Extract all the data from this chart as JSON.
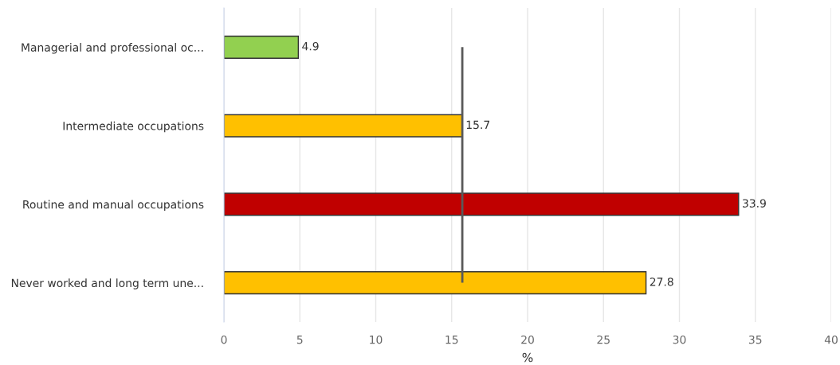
{
  "chart_data": {
    "type": "bar",
    "orientation": "horizontal",
    "xlabel": "%",
    "categories": [
      "Managerial and professional oc...",
      "Intermediate occupations",
      "Routine and manual occupations",
      "Never worked and long term une..."
    ],
    "values": [
      4.9,
      15.7,
      33.9,
      27.8
    ],
    "colors": [
      "#92d050",
      "#ffc000",
      "#c00000",
      "#ffc000"
    ],
    "xlim": [
      0,
      40
    ],
    "xticks": [
      0,
      5,
      10,
      15,
      20,
      25,
      30,
      35,
      40
    ],
    "grid": "x",
    "data_labels": true,
    "legend": false,
    "ref_lines": [
      {
        "axis": "x",
        "value": 15.7,
        "color": "#595959"
      }
    ]
  }
}
